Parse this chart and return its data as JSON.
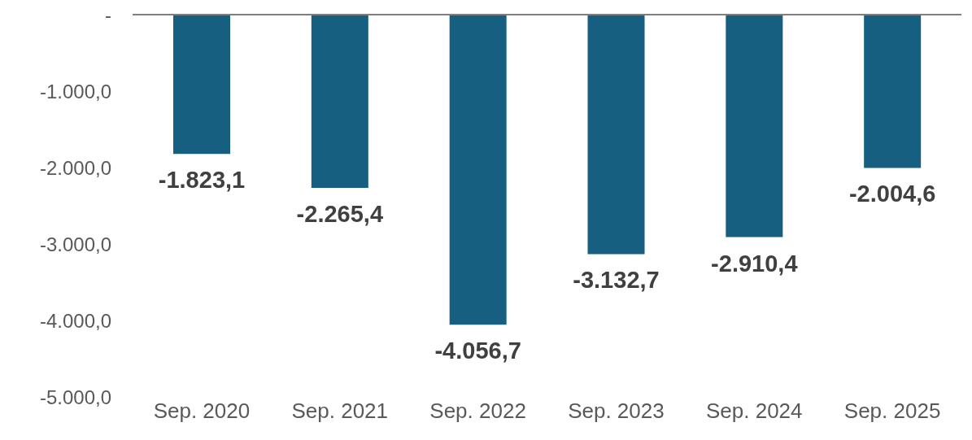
{
  "chart_data": {
    "type": "bar",
    "categories": [
      "Sep. 2020",
      "Sep. 2021",
      "Sep. 2022",
      "Sep. 2023",
      "Sep. 2024",
      "Sep. 2025"
    ],
    "values": [
      -1823.1,
      -2265.4,
      -4056.7,
      -3132.7,
      -2910.4,
      -2004.6
    ],
    "value_labels": [
      "-1.823,1",
      "-2.265,4",
      "-4.056,7",
      "-3.132,7",
      "-2.910,4",
      "-2.004,6"
    ],
    "color": "#165f80",
    "ylim": [
      -5000,
      0
    ],
    "yticks": [
      {
        "value": 0,
        "label": "-"
      },
      {
        "value": -1000,
        "label": "-1.000,0"
      },
      {
        "value": -2000,
        "label": "-2.000,0"
      },
      {
        "value": -3000,
        "label": "-3.000,0"
      },
      {
        "value": -4000,
        "label": "-4.000,0"
      },
      {
        "value": -5000,
        "label": "-5.000,0"
      }
    ],
    "grid": false,
    "legend": false
  }
}
